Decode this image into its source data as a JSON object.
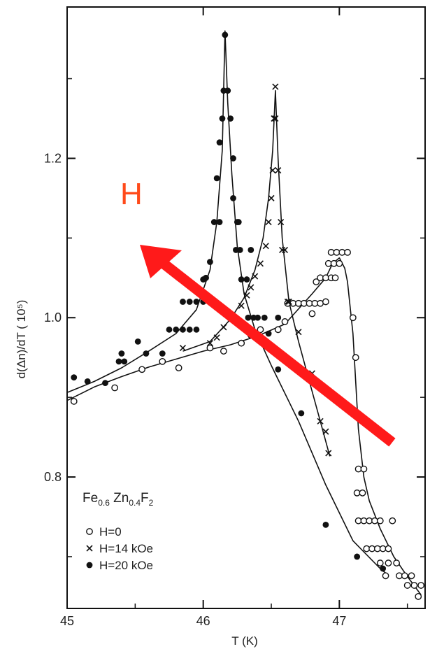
{
  "chart_data": {
    "type": "scatter",
    "title": "",
    "xlabel": "T (K)",
    "ylabel": "d(Δn)/dT   ( 10⁵)",
    "xlim": [
      45.0,
      47.63
    ],
    "ylim": [
      0.635,
      1.39
    ],
    "x_ticks": [
      "45",
      "46",
      "47"
    ],
    "x_tick_values": [
      45,
      46,
      47
    ],
    "y_ticks": [
      "0.8",
      "1.0",
      "1.2"
    ],
    "y_tick_values": [
      0.8,
      1.0,
      1.2
    ],
    "grid": false,
    "legend_position": "bottom-left",
    "sample_label": {
      "base1": "Fe",
      "sub1": "0.6",
      "base2": " Zn",
      "sub2": "0.4",
      "base3": "F",
      "sub3": "2"
    },
    "annotation": {
      "text": "H",
      "color": "#ff2a1a"
    },
    "series": [
      {
        "name": "H=0",
        "marker": "open-circle",
        "points": [
          [
            45.05,
            0.895
          ],
          [
            45.35,
            0.912
          ],
          [
            45.55,
            0.935
          ],
          [
            45.7,
            0.945
          ],
          [
            45.82,
            0.937
          ],
          [
            46.05,
            0.962
          ],
          [
            46.15,
            0.958
          ],
          [
            46.28,
            0.968
          ],
          [
            46.35,
            0.978
          ],
          [
            46.42,
            0.985
          ],
          [
            46.55,
            0.985
          ],
          [
            46.6,
            0.995
          ],
          [
            46.62,
            1.018
          ],
          [
            46.66,
            1.018
          ],
          [
            46.7,
            1.018
          ],
          [
            46.74,
            1.018
          ],
          [
            46.78,
            1.018
          ],
          [
            46.82,
            1.018
          ],
          [
            46.86,
            1.018
          ],
          [
            46.8,
            1.005
          ],
          [
            46.83,
            1.045
          ],
          [
            46.86,
            1.05
          ],
          [
            46.9,
            1.05
          ],
          [
            46.94,
            1.05
          ],
          [
            46.97,
            1.05
          ],
          [
            46.9,
            1.02
          ],
          [
            46.92,
            1.068
          ],
          [
            46.96,
            1.068
          ],
          [
            47.0,
            1.068
          ],
          [
            46.94,
            1.082
          ],
          [
            46.98,
            1.082
          ],
          [
            47.02,
            1.082
          ],
          [
            47.06,
            1.082
          ],
          [
            47.1,
            1.0
          ],
          [
            47.12,
            0.95
          ],
          [
            47.14,
            0.81
          ],
          [
            47.18,
            0.81
          ],
          [
            47.13,
            0.78
          ],
          [
            47.17,
            0.78
          ],
          [
            47.14,
            0.745
          ],
          [
            47.18,
            0.745
          ],
          [
            47.22,
            0.745
          ],
          [
            47.26,
            0.745
          ],
          [
            47.3,
            0.745
          ],
          [
            47.39,
            0.745
          ],
          [
            47.2,
            0.71
          ],
          [
            47.24,
            0.71
          ],
          [
            47.28,
            0.71
          ],
          [
            47.32,
            0.71
          ],
          [
            47.36,
            0.71
          ],
          [
            47.3,
            0.692
          ],
          [
            47.36,
            0.692
          ],
          [
            47.42,
            0.692
          ],
          [
            47.34,
            0.676
          ],
          [
            47.44,
            0.676
          ],
          [
            47.48,
            0.676
          ],
          [
            47.53,
            0.676
          ],
          [
            47.5,
            0.664
          ],
          [
            47.55,
            0.664
          ],
          [
            47.6,
            0.664
          ],
          [
            47.58,
            0.65
          ]
        ]
      },
      {
        "name": "H=14 kOe",
        "marker": "x",
        "points": [
          [
            45.85,
            0.962
          ],
          [
            46.05,
            0.968
          ],
          [
            46.1,
            0.975
          ],
          [
            46.15,
            0.988
          ],
          [
            46.2,
            1.0
          ],
          [
            46.28,
            1.015
          ],
          [
            46.32,
            1.028
          ],
          [
            46.35,
            1.038
          ],
          [
            46.38,
            1.052
          ],
          [
            46.42,
            1.068
          ],
          [
            46.46,
            1.09
          ],
          [
            46.48,
            1.12
          ],
          [
            46.5,
            1.15
          ],
          [
            46.51,
            1.185
          ],
          [
            46.52,
            1.25
          ],
          [
            46.53,
            1.25
          ],
          [
            46.53,
            1.29
          ],
          [
            46.55,
            1.185
          ],
          [
            46.57,
            1.12
          ],
          [
            46.58,
            1.085
          ],
          [
            46.6,
            1.085
          ],
          [
            46.62,
            1.02
          ],
          [
            46.63,
            1.02
          ],
          [
            46.7,
            0.982
          ],
          [
            46.8,
            0.93
          ],
          [
            46.86,
            0.87
          ],
          [
            46.9,
            0.857
          ],
          [
            46.92,
            0.83
          ]
        ]
      },
      {
        "name": "H=20 kOe",
        "marker": "filled-circle",
        "points": [
          [
            45.05,
            0.925
          ],
          [
            45.15,
            0.92
          ],
          [
            45.28,
            0.918
          ],
          [
            45.4,
            0.955
          ],
          [
            45.58,
            0.955
          ],
          [
            45.7,
            0.955
          ],
          [
            45.38,
            0.945
          ],
          [
            45.42,
            0.945
          ],
          [
            45.52,
            0.97
          ],
          [
            45.75,
            0.985
          ],
          [
            45.8,
            0.985
          ],
          [
            45.85,
            0.985
          ],
          [
            45.9,
            0.985
          ],
          [
            45.95,
            0.985
          ],
          [
            45.85,
            1.02
          ],
          [
            45.9,
            1.02
          ],
          [
            45.95,
            1.02
          ],
          [
            46.0,
            1.02
          ],
          [
            46.05,
            1.02
          ],
          [
            46.0,
            1.048
          ],
          [
            46.02,
            1.05
          ],
          [
            46.05,
            1.07
          ],
          [
            46.08,
            1.12
          ],
          [
            46.12,
            1.12
          ],
          [
            46.1,
            1.175
          ],
          [
            46.12,
            1.22
          ],
          [
            46.14,
            1.25
          ],
          [
            46.15,
            1.285
          ],
          [
            46.16,
            1.355
          ],
          [
            46.18,
            1.285
          ],
          [
            46.2,
            1.25
          ],
          [
            46.22,
            1.2
          ],
          [
            46.22,
            1.15
          ],
          [
            46.25,
            1.12
          ],
          [
            46.26,
            1.12
          ],
          [
            46.24,
            1.085
          ],
          [
            46.27,
            1.085
          ],
          [
            46.35,
            1.085
          ],
          [
            46.28,
            1.048
          ],
          [
            46.32,
            1.048
          ],
          [
            46.33,
            1.0
          ],
          [
            46.37,
            1.0
          ],
          [
            46.4,
            1.0
          ],
          [
            46.45,
            1.0
          ],
          [
            46.55,
            1.0
          ],
          [
            46.48,
            0.98
          ],
          [
            46.55,
            0.935
          ],
          [
            46.72,
            0.88
          ],
          [
            46.9,
            0.74
          ],
          [
            47.13,
            0.7
          ],
          [
            47.32,
            0.685
          ]
        ]
      }
    ],
    "curves": [
      [
        [
          45.0,
          0.896
        ],
        [
          45.2,
          0.913
        ],
        [
          45.4,
          0.926
        ],
        [
          45.6,
          0.938
        ],
        [
          45.8,
          0.948
        ],
        [
          46.0,
          0.958
        ],
        [
          46.2,
          0.966
        ],
        [
          46.4,
          0.977
        ],
        [
          46.6,
          0.992
        ],
        [
          46.8,
          1.03
        ],
        [
          46.9,
          1.05
        ],
        [
          46.95,
          1.068
        ],
        [
          47.0,
          1.075
        ],
        [
          47.04,
          1.062
        ],
        [
          47.06,
          1.045
        ],
        [
          47.1,
          0.98
        ],
        [
          47.14,
          0.86
        ],
        [
          47.18,
          0.8
        ],
        [
          47.22,
          0.77
        ],
        [
          47.3,
          0.735
        ],
        [
          47.4,
          0.7
        ],
        [
          47.5,
          0.675
        ],
        [
          47.6,
          0.652
        ]
      ],
      [
        [
          45.85,
          0.958
        ],
        [
          46.05,
          0.97
        ],
        [
          46.2,
          0.998
        ],
        [
          46.3,
          1.025
        ],
        [
          46.38,
          1.06
        ],
        [
          46.44,
          1.1
        ],
        [
          46.48,
          1.15
        ],
        [
          46.51,
          1.21
        ],
        [
          46.53,
          1.285
        ],
        [
          46.55,
          1.2
        ],
        [
          46.58,
          1.1
        ],
        [
          46.63,
          1.02
        ],
        [
          46.7,
          0.97
        ],
        [
          46.78,
          0.92
        ],
        [
          46.86,
          0.87
        ],
        [
          46.93,
          0.826
        ]
      ],
      [
        [
          45.0,
          0.906
        ],
        [
          45.2,
          0.92
        ],
        [
          45.4,
          0.937
        ],
        [
          45.6,
          0.958
        ],
        [
          45.8,
          0.98
        ],
        [
          45.95,
          1.01
        ],
        [
          46.05,
          1.06
        ],
        [
          46.1,
          1.12
        ],
        [
          46.14,
          1.21
        ],
        [
          46.16,
          1.36
        ],
        [
          46.18,
          1.27
        ],
        [
          46.21,
          1.18
        ],
        [
          46.25,
          1.09
        ],
        [
          46.3,
          1.03
        ],
        [
          46.38,
          0.985
        ],
        [
          46.5,
          0.94
        ],
        [
          46.7,
          0.87
        ],
        [
          46.9,
          0.79
        ],
        [
          47.1,
          0.72
        ],
        [
          47.3,
          0.685
        ],
        [
          47.35,
          0.678
        ]
      ]
    ]
  }
}
